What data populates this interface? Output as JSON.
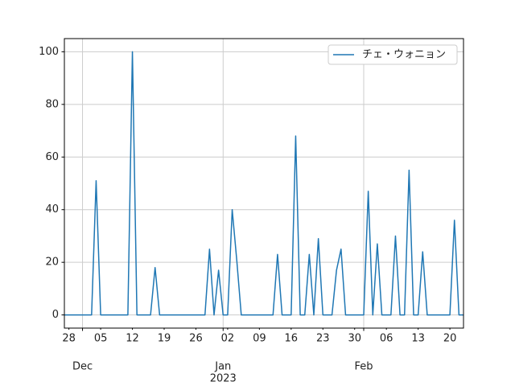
{
  "chart_data": {
    "type": "line",
    "x": [
      "2022-11-27",
      "2022-11-28",
      "2022-11-29",
      "2022-11-30",
      "2022-12-01",
      "2022-12-02",
      "2022-12-03",
      "2022-12-04",
      "2022-12-05",
      "2022-12-06",
      "2022-12-07",
      "2022-12-08",
      "2022-12-09",
      "2022-12-10",
      "2022-12-11",
      "2022-12-12",
      "2022-12-13",
      "2022-12-14",
      "2022-12-15",
      "2022-12-16",
      "2022-12-17",
      "2022-12-18",
      "2022-12-19",
      "2022-12-20",
      "2022-12-21",
      "2022-12-22",
      "2022-12-23",
      "2022-12-24",
      "2022-12-25",
      "2022-12-26",
      "2022-12-27",
      "2022-12-28",
      "2022-12-29",
      "2022-12-30",
      "2022-12-31",
      "2023-01-01",
      "2023-01-02",
      "2023-01-03",
      "2023-01-04",
      "2023-01-05",
      "2023-01-06",
      "2023-01-07",
      "2023-01-08",
      "2023-01-09",
      "2023-01-10",
      "2023-01-11",
      "2023-01-12",
      "2023-01-13",
      "2023-01-14",
      "2023-01-15",
      "2023-01-16",
      "2023-01-17",
      "2023-01-18",
      "2023-01-19",
      "2023-01-20",
      "2023-01-21",
      "2023-01-22",
      "2023-01-23",
      "2023-01-24",
      "2023-01-25",
      "2023-01-26",
      "2023-01-27",
      "2023-01-28",
      "2023-01-29",
      "2023-01-30",
      "2023-01-31",
      "2023-02-01",
      "2023-02-02",
      "2023-02-03",
      "2023-02-04",
      "2023-02-05",
      "2023-02-06",
      "2023-02-07",
      "2023-02-08",
      "2023-02-09",
      "2023-02-10",
      "2023-02-11",
      "2023-02-12",
      "2023-02-13",
      "2023-02-14",
      "2023-02-15",
      "2023-02-16",
      "2023-02-17",
      "2023-02-18",
      "2023-02-19",
      "2023-02-20",
      "2023-02-21",
      "2023-02-22",
      "2023-02-23"
    ],
    "series": [
      {
        "name": "チェ・ウォニョン",
        "color": "#1f77b4",
        "values": [
          0,
          0,
          0,
          0,
          0,
          0,
          0,
          51,
          0,
          0,
          0,
          0,
          0,
          0,
          0,
          100,
          0,
          0,
          0,
          0,
          18,
          0,
          0,
          0,
          0,
          0,
          0,
          0,
          0,
          0,
          0,
          0,
          25,
          0,
          17,
          0,
          0,
          40,
          21,
          0,
          0,
          0,
          0,
          0,
          0,
          0,
          0,
          23,
          0,
          0,
          0,
          68,
          0,
          0,
          23,
          0,
          29,
          0,
          0,
          0,
          17,
          25,
          0,
          0,
          0,
          0,
          0,
          47,
          0,
          27,
          0,
          0,
          0,
          30,
          0,
          0,
          55,
          0,
          0,
          24,
          0,
          0,
          0,
          0,
          0,
          0,
          36,
          0,
          0
        ]
      }
    ],
    "xlim": [
      "2022-11-27",
      "2023-02-23"
    ],
    "xticks": [
      {
        "value": "2022-11-28",
        "label": "28"
      },
      {
        "value": "2022-12-05",
        "label": "05"
      },
      {
        "value": "2022-12-12",
        "label": "12"
      },
      {
        "value": "2022-12-19",
        "label": "19"
      },
      {
        "value": "2022-12-26",
        "label": "26"
      },
      {
        "value": "2023-01-02",
        "label": "02"
      },
      {
        "value": "2023-01-09",
        "label": "09"
      },
      {
        "value": "2023-01-16",
        "label": "16"
      },
      {
        "value": "2023-01-23",
        "label": "23"
      },
      {
        "value": "2023-01-30",
        "label": "30"
      },
      {
        "value": "2023-02-06",
        "label": "06"
      },
      {
        "value": "2023-02-13",
        "label": "13"
      },
      {
        "value": "2023-02-20",
        "label": "20"
      }
    ],
    "month_ticks": [
      {
        "value": "2022-12-01",
        "label": "Dec"
      },
      {
        "value": "2023-01-01",
        "label": "Jan"
      },
      {
        "value": "2023-02-01",
        "label": "Feb"
      }
    ],
    "year_label": {
      "value": "2023-01-01",
      "label": "2023"
    },
    "ylim": [
      -5,
      105
    ],
    "yticks": [
      0,
      20,
      40,
      60,
      80,
      100
    ],
    "grid": true,
    "legend": "upper right"
  }
}
